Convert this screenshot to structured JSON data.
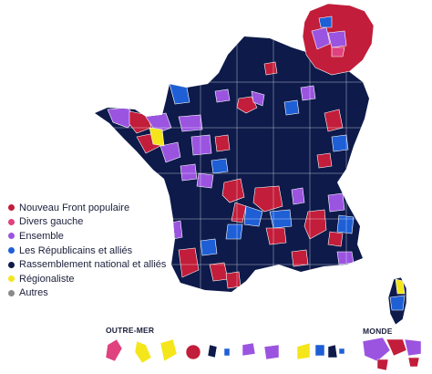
{
  "legend": {
    "items": [
      {
        "label": "Nouveau Front populaire",
        "color": "#c21d3a"
      },
      {
        "label": "Divers gauche",
        "color": "#e0417f"
      },
      {
        "label": "Ensemble",
        "color": "#9b54e0"
      },
      {
        "label": "Les Républicains et alliés",
        "color": "#1e5fd6"
      },
      {
        "label": "Rassemblement national et alliés",
        "color": "#0d1a4a"
      },
      {
        "label": "Régionaliste",
        "color": "#f4e61a"
      },
      {
        "label": "Autres",
        "color": "#8a8a8a"
      }
    ]
  },
  "sections": {
    "outre_mer": "OUTRE-MER",
    "monde": "MONDE"
  },
  "colors": {
    "nfp": "#c21d3a",
    "dvg": "#e0417f",
    "ens": "#9b54e0",
    "lr": "#1e5fd6",
    "rn": "#0d1a4a",
    "reg": "#f4e61a",
    "border": "#ffffff"
  }
}
